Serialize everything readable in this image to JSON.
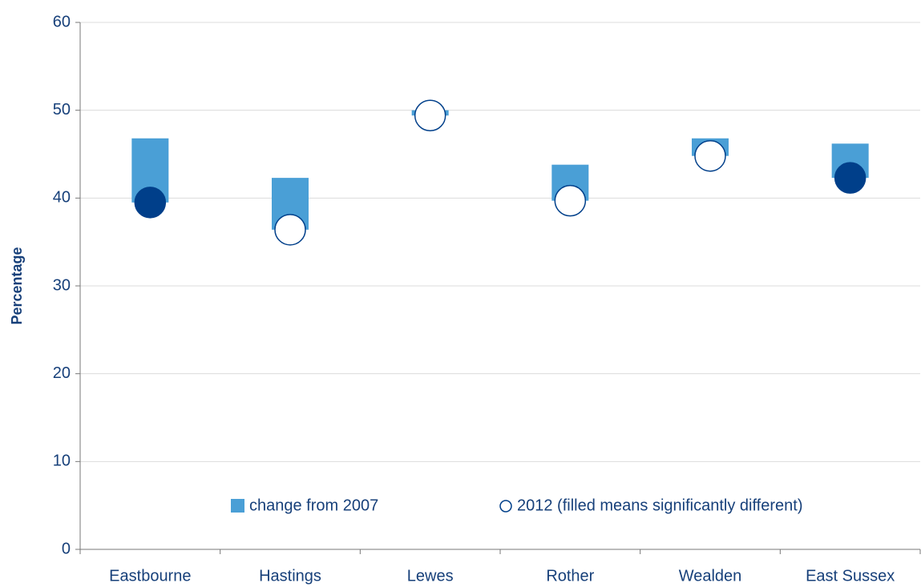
{
  "chart_data": {
    "type": "floating-bar-dot",
    "y_label": "Percentage",
    "categories": [
      "Eastbourne",
      "Hastings",
      "Lewes",
      "Rother",
      "Wealden",
      "East Sussex"
    ],
    "series": [
      {
        "name": "change from 2007",
        "color": "#4a9fd6",
        "values": [
          7.3,
          5.9,
          0.6,
          4.1,
          2.0,
          3.9
        ]
      },
      {
        "name": "2012 (filled means significantly different)",
        "color": "#003f8a",
        "values": [
          39.5,
          36.4,
          49.4,
          39.7,
          44.8,
          42.3
        ],
        "filled": [
          true,
          false,
          false,
          false,
          false,
          true
        ]
      }
    ],
    "ylim": [
      0,
      60
    ],
    "yticks": [
      0,
      10,
      20,
      30,
      40,
      50,
      60
    ],
    "grid": true,
    "legend": "bottom"
  }
}
